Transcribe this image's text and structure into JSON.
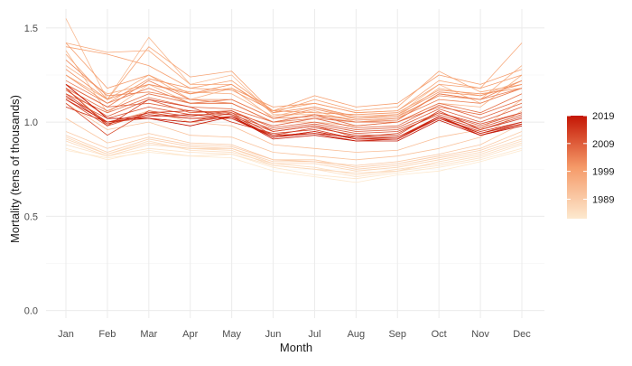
{
  "chart_data": {
    "type": "line",
    "xlabel": "Month",
    "ylabel": "Mortality (tens of thousands)",
    "categories": [
      "Jan",
      "Feb",
      "Mar",
      "Apr",
      "May",
      "Jun",
      "Jul",
      "Aug",
      "Sep",
      "Oct",
      "Nov",
      "Dec"
    ],
    "ylim": [
      -0.04,
      1.6
    ],
    "yticks": [
      0.0,
      0.5,
      1.0,
      1.5
    ],
    "ytick_labels": [
      "0.0",
      "0.5",
      "1.0",
      "1.5"
    ],
    "grid": true,
    "color_scale": {
      "title": "",
      "range": [
        1982,
        2019
      ],
      "ticks": [
        1989,
        1999,
        2009,
        2019
      ],
      "tick_labels": [
        "1989",
        "1999",
        "2009",
        "2019"
      ],
      "low_color": "#fde9cf",
      "mid_color": "#f59a68",
      "high_color": "#c41605",
      "placement": "right"
    },
    "series": [
      {
        "year": 1982,
        "values": [
          0.85,
          0.81,
          0.84,
          0.82,
          0.81,
          0.74,
          0.71,
          0.68,
          0.72,
          0.74,
          0.79,
          0.85
        ]
      },
      {
        "year": 1983,
        "values": [
          0.86,
          0.8,
          0.85,
          0.82,
          0.83,
          0.76,
          0.72,
          0.7,
          0.73,
          0.76,
          0.8,
          0.86
        ]
      },
      {
        "year": 1984,
        "values": [
          0.88,
          0.82,
          0.86,
          0.84,
          0.83,
          0.77,
          0.75,
          0.71,
          0.74,
          0.77,
          0.81,
          0.88
        ]
      },
      {
        "year": 1985,
        "values": [
          0.92,
          0.83,
          0.9,
          0.85,
          0.84,
          0.78,
          0.76,
          0.72,
          0.75,
          0.78,
          0.82,
          0.89
        ]
      },
      {
        "year": 1986,
        "values": [
          0.9,
          0.82,
          0.88,
          0.86,
          0.85,
          0.77,
          0.75,
          0.73,
          0.74,
          0.79,
          0.83,
          0.9
        ]
      },
      {
        "year": 1987,
        "values": [
          0.91,
          0.83,
          0.89,
          0.86,
          0.86,
          0.78,
          0.78,
          0.74,
          0.76,
          0.8,
          0.84,
          0.91
        ]
      },
      {
        "year": 1988,
        "values": [
          0.93,
          0.84,
          0.91,
          0.87,
          0.86,
          0.79,
          0.79,
          0.75,
          0.77,
          0.81,
          0.85,
          0.93
        ]
      },
      {
        "year": 1989,
        "values": [
          0.95,
          0.86,
          0.92,
          0.88,
          0.87,
          0.8,
          0.8,
          0.76,
          0.78,
          0.82,
          0.86,
          0.95
        ]
      },
      {
        "year": 1990,
        "values": [
          1.02,
          0.89,
          0.94,
          0.89,
          0.88,
          0.8,
          0.79,
          0.77,
          0.79,
          0.83,
          0.88,
          0.99
        ]
      },
      {
        "year": 1991,
        "values": [
          1.1,
          0.96,
          1.0,
          0.93,
          0.92,
          0.84,
          0.82,
          0.8,
          0.82,
          0.86,
          0.92,
          1.06
        ]
      },
      {
        "year": 1992,
        "values": [
          1.18,
          0.99,
          1.06,
          1.0,
          0.98,
          0.88,
          0.86,
          0.84,
          0.85,
          0.92,
          0.96,
          1.12
        ]
      },
      {
        "year": 1993,
        "values": [
          1.55,
          1.12,
          1.45,
          1.2,
          1.25,
          1.04,
          1.04,
          1.02,
          1.04,
          1.2,
          1.1,
          1.18
        ]
      },
      {
        "year": 1994,
        "values": [
          1.38,
          1.05,
          1.2,
          1.1,
          1.1,
          1.0,
          1.0,
          0.98,
          1.0,
          1.1,
          1.08,
          1.25
        ]
      },
      {
        "year": 1995,
        "values": [
          1.25,
          1.12,
          1.25,
          1.12,
          1.18,
          1.02,
          1.06,
          1.0,
          1.02,
          1.15,
          1.12,
          1.3
        ]
      },
      {
        "year": 1996,
        "values": [
          1.3,
          1.15,
          1.2,
          1.16,
          1.15,
          1.03,
          1.08,
          1.02,
          1.03,
          1.18,
          1.14,
          1.22
        ]
      },
      {
        "year": 1997,
        "values": [
          1.42,
          1.37,
          1.38,
          1.2,
          1.2,
          1.06,
          1.1,
          1.05,
          1.06,
          1.22,
          1.18,
          1.42
        ]
      },
      {
        "year": 1998,
        "values": [
          1.36,
          1.12,
          1.4,
          1.24,
          1.27,
          1.05,
          1.12,
          1.06,
          1.08,
          1.27,
          1.16,
          1.2
        ]
      },
      {
        "year": 1999,
        "values": [
          1.4,
          1.36,
          1.3,
          1.18,
          1.22,
          1.06,
          1.14,
          1.08,
          1.1,
          1.25,
          1.2,
          1.28
        ]
      },
      {
        "year": 2000,
        "values": [
          1.42,
          1.18,
          1.25,
          1.15,
          1.18,
          1.08,
          1.1,
          1.05,
          1.06,
          1.2,
          1.18,
          1.25
        ]
      },
      {
        "year": 2001,
        "values": [
          1.25,
          1.1,
          1.23,
          1.18,
          1.17,
          1.06,
          1.05,
          1.04,
          1.05,
          1.17,
          1.15,
          1.18
        ]
      },
      {
        "year": 2002,
        "values": [
          1.28,
          1.12,
          1.2,
          1.15,
          1.2,
          1.05,
          1.08,
          1.03,
          1.04,
          1.16,
          1.14,
          1.2
        ]
      },
      {
        "year": 2003,
        "values": [
          1.33,
          1.14,
          1.16,
          1.12,
          1.12,
          1.02,
          1.07,
          1.02,
          1.03,
          1.14,
          1.12,
          1.22
        ]
      },
      {
        "year": 2004,
        "values": [
          1.2,
          1.08,
          1.22,
          1.12,
          1.1,
          1.0,
          1.04,
          1.01,
          1.02,
          1.12,
          1.1,
          1.18
        ]
      },
      {
        "year": 2005,
        "values": [
          1.22,
          1.1,
          1.18,
          1.1,
          1.12,
          1.02,
          1.03,
          1.0,
          1.01,
          1.15,
          1.12,
          1.18
        ]
      },
      {
        "year": 2006,
        "values": [
          1.18,
          1.06,
          1.15,
          1.1,
          1.1,
          1.0,
          1.02,
          1.0,
          1.0,
          1.1,
          1.05,
          1.15
        ]
      },
      {
        "year": 2007,
        "values": [
          1.15,
          1.05,
          1.13,
          1.08,
          1.07,
          1.0,
          1.04,
          0.98,
          1.0,
          1.08,
          1.04,
          1.12
        ]
      },
      {
        "year": 2008,
        "values": [
          1.2,
          1.08,
          1.1,
          1.06,
          1.05,
          0.98,
          1.02,
          0.97,
          0.98,
          1.09,
          1.02,
          1.1
        ]
      },
      {
        "year": 2009,
        "values": [
          1.17,
          1.03,
          1.12,
          1.05,
          1.06,
          0.97,
          1.0,
          0.96,
          0.97,
          1.07,
          1.0,
          1.08
        ]
      },
      {
        "year": 2010,
        "values": [
          1.13,
          1.02,
          1.08,
          1.04,
          1.04,
          0.96,
          0.99,
          0.95,
          0.96,
          1.05,
          0.98,
          1.05
        ]
      },
      {
        "year": 2011,
        "values": [
          1.12,
          0.98,
          1.05,
          1.02,
          1.03,
          0.95,
          0.98,
          0.94,
          0.95,
          1.04,
          0.97,
          1.04
        ]
      },
      {
        "year": 2012,
        "values": [
          1.1,
          0.93,
          1.06,
          1.03,
          1.06,
          0.95,
          0.98,
          0.92,
          0.94,
          1.05,
          0.99,
          1.05
        ]
      },
      {
        "year": 2013,
        "values": [
          1.15,
          1.0,
          1.02,
          1.0,
          1.05,
          0.93,
          0.97,
          0.93,
          0.93,
          1.06,
          0.96,
          1.03
        ]
      },
      {
        "year": 2014,
        "values": [
          1.18,
          0.98,
          1.12,
          1.08,
          1.0,
          0.94,
          0.96,
          0.91,
          0.92,
          1.03,
          0.96,
          1.02
        ]
      },
      {
        "year": 2015,
        "values": [
          1.08,
          1.0,
          1.05,
          1.06,
          1.04,
          0.92,
          0.95,
          0.91,
          0.91,
          1.03,
          0.94,
          0.99
        ]
      },
      {
        "year": 2016,
        "values": [
          1.14,
          0.99,
          1.04,
          1.02,
          1.02,
          0.93,
          0.94,
          0.92,
          0.92,
          1.02,
          0.95,
          1.0
        ]
      },
      {
        "year": 2017,
        "values": [
          1.12,
          1.0,
          1.03,
          1.04,
          1.02,
          0.92,
          0.95,
          0.91,
          0.91,
          1.02,
          0.94,
          1.0
        ]
      },
      {
        "year": 2018,
        "values": [
          1.2,
          1.02,
          1.02,
          1.0,
          1.03,
          0.92,
          0.94,
          0.9,
          0.91,
          1.03,
          0.93,
          0.99
        ]
      },
      {
        "year": 2019,
        "values": [
          1.2,
          1.02,
          1.02,
          0.98,
          1.03,
          0.91,
          0.93,
          0.9,
          0.9,
          1.01,
          0.93,
          0.98
        ]
      }
    ]
  }
}
